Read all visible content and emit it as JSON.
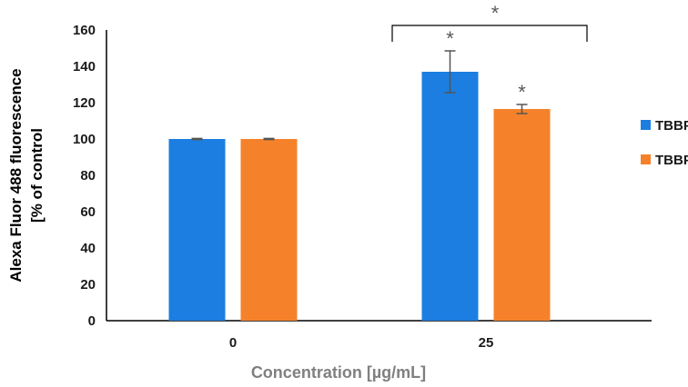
{
  "chart_data": {
    "type": "bar",
    "title": "",
    "xlabel": "Concentration [µg/mL]",
    "ylabel_lines": [
      "Alexa Fluor 488 fluorescence",
      "[% of control"
    ],
    "categories": [
      "0",
      "25"
    ],
    "ylim": [
      0,
      160
    ],
    "yticks": [
      0,
      20,
      40,
      60,
      80,
      100,
      120,
      140,
      160
    ],
    "series": [
      {
        "name": "TBBPA",
        "color": "#1b7ee0",
        "values": [
          100,
          137
        ],
        "errors": [
          0.3,
          11.5
        ]
      },
      {
        "name": "TBBPS",
        "color": "#f5822a",
        "values": [
          100,
          116.5
        ],
        "errors": [
          0.3,
          2.5
        ]
      }
    ],
    "significance": {
      "bar_marks": [
        {
          "category": 1,
          "series": 0,
          "symbol": "*"
        },
        {
          "category": 1,
          "series": 1,
          "symbol": "*"
        }
      ],
      "bracket": {
        "category": 1,
        "symbol": "*"
      }
    },
    "legend": {
      "position": "right"
    },
    "grid": false
  }
}
